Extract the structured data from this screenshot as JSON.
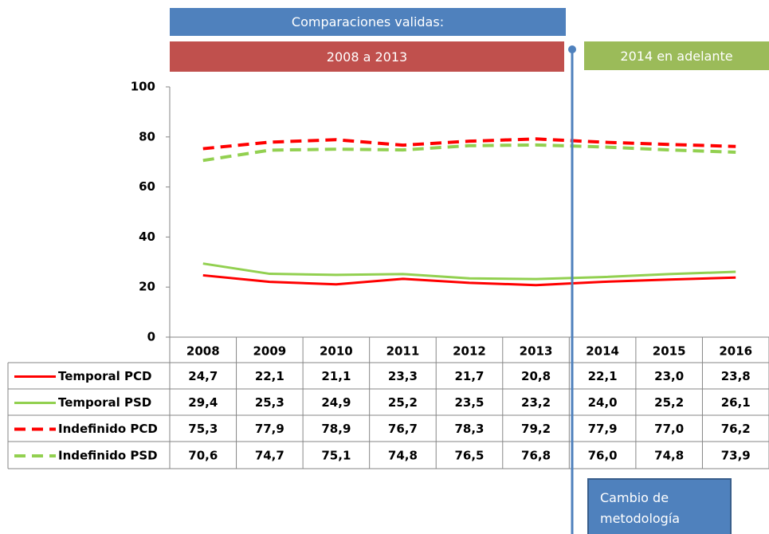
{
  "chart_data": {
    "type": "line",
    "annotations": [
      "Comparaciones validas:",
      "2008 a 2013",
      "2014 en adelante",
      "Cambio de metodología"
    ],
    "categories": [
      "2008",
      "2009",
      "2010",
      "2011",
      "2012",
      "2013",
      "2014",
      "2015",
      "2016"
    ],
    "series": [
      {
        "name": "Temporal PCD",
        "color": "#ff0000",
        "dashed": false,
        "values": [
          24.7,
          22.1,
          21.1,
          23.3,
          21.7,
          20.8,
          22.1,
          23.0,
          23.8
        ],
        "value_labels": [
          "24,7",
          "22,1",
          "21,1",
          "23,3",
          "21,7",
          "20,8",
          "22,1",
          "23,0",
          "23,8"
        ]
      },
      {
        "name": "Temporal PSD",
        "color": "#92d050",
        "dashed": false,
        "values": [
          29.4,
          25.3,
          24.9,
          25.2,
          23.5,
          23.2,
          24.0,
          25.2,
          26.1
        ],
        "value_labels": [
          "29,4",
          "25,3",
          "24,9",
          "25,2",
          "23,5",
          "23,2",
          "24,0",
          "25,2",
          "26,1"
        ]
      },
      {
        "name": "Indefinido PCD",
        "color": "#ff0000",
        "dashed": true,
        "values": [
          75.3,
          77.9,
          78.9,
          76.7,
          78.3,
          79.2,
          77.9,
          77.0,
          76.2
        ],
        "value_labels": [
          "75,3",
          "77,9",
          "78,9",
          "76,7",
          "78,3",
          "79,2",
          "77,9",
          "77,0",
          "76,2"
        ]
      },
      {
        "name": "Indefinido PSD",
        "color": "#92d050",
        "dashed": true,
        "values": [
          70.6,
          74.7,
          75.1,
          74.8,
          76.5,
          76.8,
          76.0,
          74.8,
          73.9
        ],
        "value_labels": [
          "70,6",
          "74,7",
          "75,1",
          "74,8",
          "76,5",
          "76,8",
          "76,0",
          "74,8",
          "73,9"
        ]
      }
    ],
    "ylim": [
      0,
      100
    ],
    "yticks": [
      0,
      20,
      40,
      60,
      80,
      100
    ],
    "grid": false
  }
}
